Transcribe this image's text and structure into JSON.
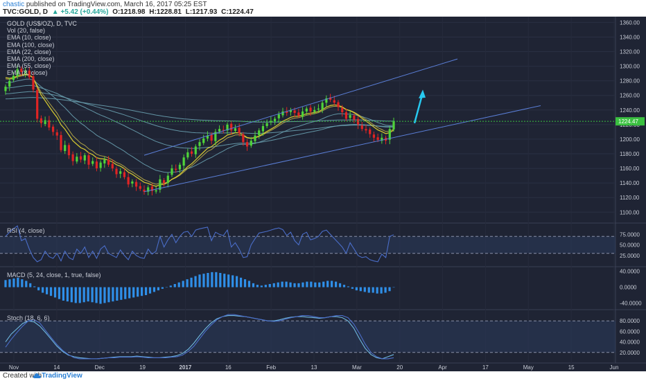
{
  "header": {
    "author": "chastic",
    "published_text": "published on TradingView.com, March 16, 2017 05:25 EST",
    "symbol": "TVC:GOLD, D",
    "change_arrow": "▲",
    "change": "+5.42 (+0.44%)",
    "open": "O:1218.98",
    "high": "H:1228.81",
    "low": "L:1217.93",
    "close": "C:1224.47"
  },
  "legend": {
    "title": "GOLD (US$/OZ), D, TVC",
    "items": [
      "Vol (20, false)",
      "EMA (10, close)",
      "EMA (100, close)",
      "EMA (22, close)",
      "EMA (200, close)",
      "EMA (55, close)",
      "EMA (8, close)"
    ]
  },
  "panes": {
    "rsi_label": "RSI (4, close)",
    "macd_label": "MACD (5, 24, close, 1, true, false)",
    "stoch_label": "Stoch (18, 6, 6)"
  },
  "footer": {
    "created": "Created with",
    "brand": "TradingView"
  },
  "colors": {
    "background": "#1f2434",
    "up": "#4fd43a",
    "down": "#e02424",
    "ema_fast": "#f0e030",
    "ema_slow": "#6fa8b8",
    "channel": "#5b7fd8",
    "arrow": "#27c9f0",
    "macd_hist": "#2f8fe8",
    "oscillator": "#4a6dc8",
    "current_price_line": "#3ac040"
  },
  "chart_data": [
    {
      "type": "candlestick",
      "title": "GOLD (US$/OZ), D, TVC",
      "x_labels": [
        "Nov",
        "14",
        "Dec",
        "19",
        "2017",
        "16",
        "Feb",
        "13",
        "Mar",
        "20",
        "Apr",
        "17",
        "May",
        "15",
        "Jun"
      ],
      "y_ticks": [
        1100,
        1120,
        1140,
        1160,
        1180,
        1200,
        1220,
        1240,
        1260,
        1280,
        1300,
        1320,
        1340,
        1360
      ],
      "y_tick_labels": [
        "1100.00",
        "1120.00",
        "1140.00",
        "1160.00",
        "1180.00",
        "1200.00",
        "1220.00",
        "1240.00",
        "1260.00",
        "1280.00",
        "1300.00",
        "1320.00",
        "1340.00",
        "1360.00"
      ],
      "ylim": [
        1086,
        1368
      ],
      "current_price": 1224.47,
      "current_price_label": "1224.47",
      "close_series_approx": [
        1272,
        1280,
        1287,
        1296,
        1292,
        1294,
        1285,
        1268,
        1228,
        1222,
        1226,
        1216,
        1210,
        1205,
        1185,
        1192,
        1178,
        1170,
        1176,
        1172,
        1178,
        1165,
        1170,
        1160,
        1168,
        1172,
        1165,
        1160,
        1152,
        1156,
        1148,
        1138,
        1142,
        1135,
        1132,
        1128,
        1134,
        1129,
        1130,
        1145,
        1140,
        1150,
        1160,
        1158,
        1165,
        1175,
        1182,
        1180,
        1190,
        1196,
        1201,
        1205,
        1198,
        1210,
        1214,
        1212,
        1220,
        1212,
        1215,
        1208,
        1196,
        1190,
        1198,
        1205,
        1212,
        1218,
        1222,
        1225,
        1228,
        1234,
        1238,
        1236,
        1240,
        1236,
        1232,
        1238,
        1242,
        1238,
        1240,
        1242,
        1250,
        1256,
        1254,
        1250,
        1244,
        1237,
        1228,
        1233,
        1227,
        1220,
        1214,
        1212,
        1207,
        1202,
        1199,
        1202,
        1198,
        1214,
        1224.47
      ]
    },
    {
      "type": "line",
      "title": "RSI (4, close)",
      "y_tick_labels": [
        "75.0000",
        "50.0000",
        "25.0000"
      ],
      "ylim": [
        0,
        100
      ],
      "bands": [
        30,
        70
      ],
      "values": [
        70,
        80,
        88,
        95,
        60,
        65,
        40,
        20,
        10,
        15,
        35,
        22,
        18,
        30,
        12,
        35,
        20,
        15,
        40,
        30,
        45,
        20,
        35,
        18,
        40,
        48,
        30,
        25,
        20,
        38,
        25,
        15,
        35,
        25,
        20,
        18,
        40,
        28,
        35,
        70,
        45,
        62,
        75,
        55,
        70,
        80,
        82,
        70,
        85,
        88,
        90,
        92,
        60,
        80,
        75,
        72,
        85,
        45,
        55,
        40,
        20,
        22,
        50,
        65,
        78,
        80,
        82,
        85,
        88,
        90,
        86,
        72,
        80,
        60,
        50,
        75,
        80,
        62,
        65,
        70,
        82,
        85,
        75,
        65,
        55,
        45,
        30,
        55,
        40,
        25,
        20,
        22,
        15,
        12,
        10,
        28,
        20,
        70,
        74
      ]
    },
    {
      "type": "bar",
      "title": "MACD (5, 24, close, 1, true, false)",
      "y_tick_labels": [
        "40.0000",
        "0.0000",
        "-40.0000"
      ],
      "ylim": [
        -55,
        50
      ],
      "values": [
        18,
        20,
        22,
        24,
        20,
        16,
        10,
        2,
        -8,
        -14,
        -18,
        -22,
        -26,
        -30,
        -34,
        -36,
        -38,
        -40,
        -40,
        -38,
        -36,
        -38,
        -40,
        -42,
        -40,
        -38,
        -36,
        -34,
        -32,
        -30,
        -28,
        -26,
        -24,
        -22,
        -20,
        -16,
        -12,
        -8,
        -4,
        0,
        4,
        8,
        12,
        16,
        20,
        24,
        28,
        32,
        34,
        36,
        38,
        38,
        36,
        34,
        32,
        30,
        28,
        24,
        20,
        16,
        10,
        6,
        4,
        6,
        8,
        10,
        12,
        14,
        14,
        12,
        10,
        10,
        12,
        14,
        14,
        12,
        12,
        14,
        16,
        16,
        14,
        10,
        6,
        2,
        -4,
        -8,
        -10,
        -12,
        -14,
        -14,
        -16,
        -16,
        -14,
        -10,
        0
      ]
    },
    {
      "type": "line",
      "title": "Stoch (18, 6, 6)",
      "y_tick_labels": [
        "80.0000",
        "60.0000",
        "40.0000",
        "20.0000"
      ],
      "ylim": [
        0,
        100
      ],
      "bands": [
        20,
        80
      ],
      "series": [
        {
          "values": [
            40,
            55,
            65,
            75,
            80,
            78,
            70,
            58,
            45,
            32,
            22,
            15,
            12,
            10,
            9,
            8,
            8,
            9,
            10,
            11,
            12,
            12,
            12,
            13,
            12,
            11,
            10,
            10,
            11,
            12,
            14,
            18,
            26,
            38,
            52,
            65,
            76,
            84,
            88,
            90,
            90,
            89,
            88,
            86,
            84,
            82,
            80,
            80,
            82,
            85,
            87,
            88,
            88,
            87,
            86,
            85,
            86,
            88,
            88,
            86,
            80,
            66,
            46,
            28,
            16,
            10,
            8,
            12,
            16
          ]
        },
        {
          "values": [
            30,
            45,
            58,
            70,
            80,
            82,
            76,
            62,
            48,
            35,
            24,
            16,
            10,
            8,
            8,
            8,
            8,
            9,
            10,
            10,
            11,
            11,
            11,
            12,
            11,
            10,
            10,
            10,
            10,
            11,
            12,
            15,
            22,
            32,
            46,
            60,
            72,
            82,
            88,
            92,
            92,
            90,
            88,
            86,
            84,
            82,
            80,
            79,
            80,
            83,
            86,
            88,
            90,
            90,
            88,
            86,
            86,
            88,
            90,
            90,
            86,
            74,
            56,
            36,
            20,
            12,
            8,
            8,
            10
          ]
        }
      ]
    }
  ]
}
